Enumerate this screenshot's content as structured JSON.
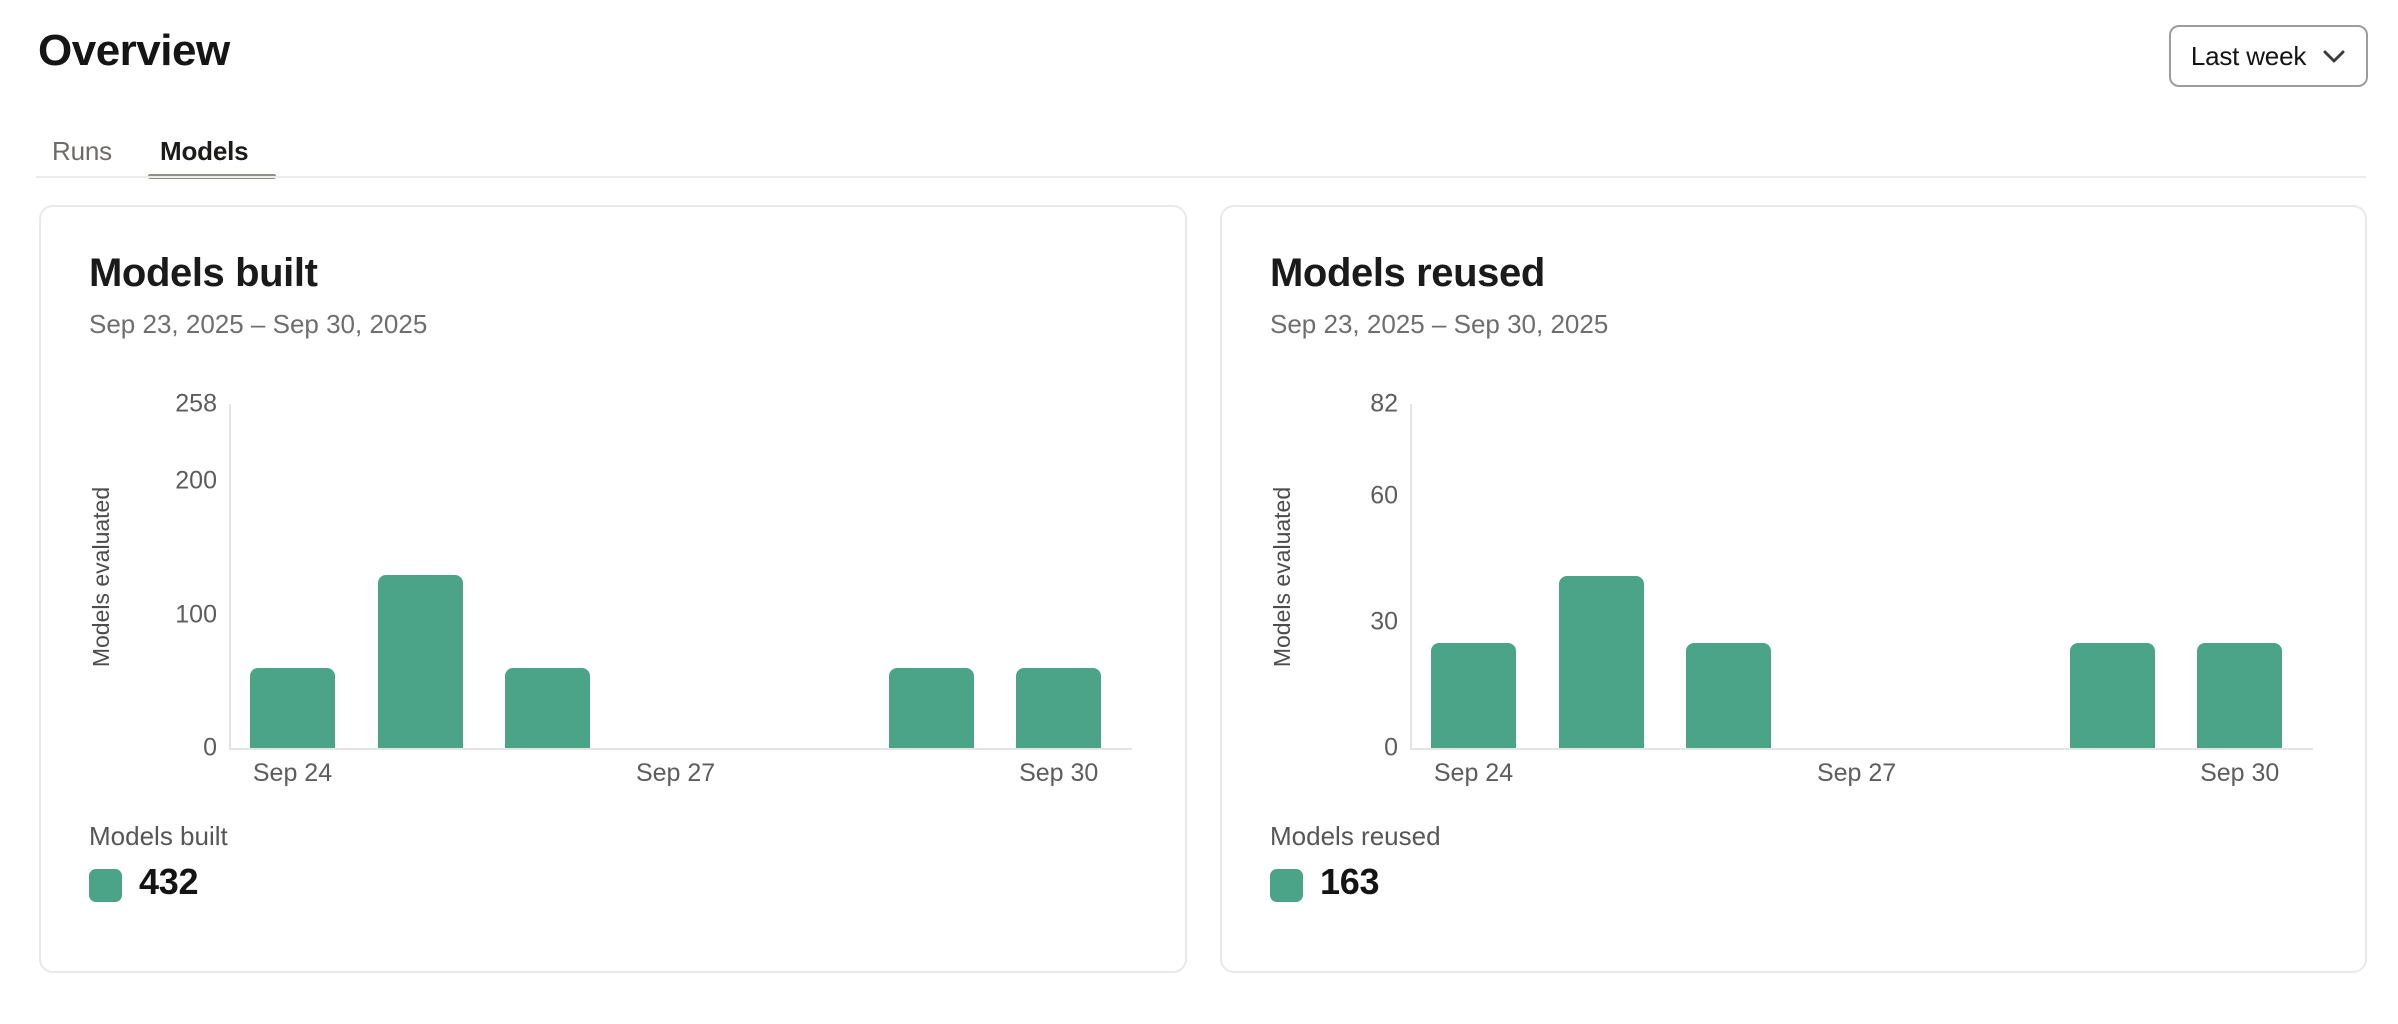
{
  "header": {
    "title": "Overview",
    "range_label": "Last week"
  },
  "tabs": [
    {
      "label": "Runs",
      "active": false
    },
    {
      "label": "Models",
      "active": true
    }
  ],
  "colors": {
    "bar": "#4BA487",
    "tab_underline": "#918D88",
    "axis_line": "#E4E4E2",
    "card_border": "#EAE9E7"
  },
  "cards": [
    {
      "title": "Models built",
      "date_range": "Sep 23, 2025 – Sep 30, 2025",
      "legend_label": "Models built",
      "total": "432"
    },
    {
      "title": "Models reused",
      "date_range": "Sep 23, 2025 – Sep 30, 2025",
      "legend_label": "Models reused",
      "total": "163"
    }
  ],
  "chart_data": [
    {
      "type": "bar",
      "title": "Models built",
      "subtitle": "Sep 23, 2025 – Sep 30, 2025",
      "categories": [
        "Sep 24",
        "Sep 25",
        "Sep 26",
        "Sep 27",
        "Sep 28",
        "Sep 29",
        "Sep 30"
      ],
      "values": [
        60,
        130,
        60,
        0,
        0,
        60,
        60
      ],
      "total": 432,
      "xlabel": "",
      "ylabel": "Models evaluated",
      "ylim": [
        0,
        258
      ],
      "yticks": [
        0,
        100,
        200,
        258
      ],
      "xticks_shown": [
        "Sep 24",
        "Sep 27",
        "Sep 30"
      ],
      "bar_color": "#4BA487",
      "grid": false,
      "legend_position": "bottom-left"
    },
    {
      "type": "bar",
      "title": "Models reused",
      "subtitle": "Sep 23, 2025 – Sep 30, 2025",
      "categories": [
        "Sep 24",
        "Sep 25",
        "Sep 26",
        "Sep 27",
        "Sep 28",
        "Sep 29",
        "Sep 30"
      ],
      "values": [
        25,
        41,
        25,
        0,
        0,
        25,
        25
      ],
      "total": 163,
      "xlabel": "",
      "ylabel": "Models evaluated",
      "ylim": [
        0,
        82
      ],
      "yticks": [
        0,
        30,
        60,
        82
      ],
      "xticks_shown": [
        "Sep 24",
        "Sep 27",
        "Sep 30"
      ],
      "bar_color": "#4BA487",
      "grid": false,
      "legend_position": "bottom-left"
    }
  ]
}
